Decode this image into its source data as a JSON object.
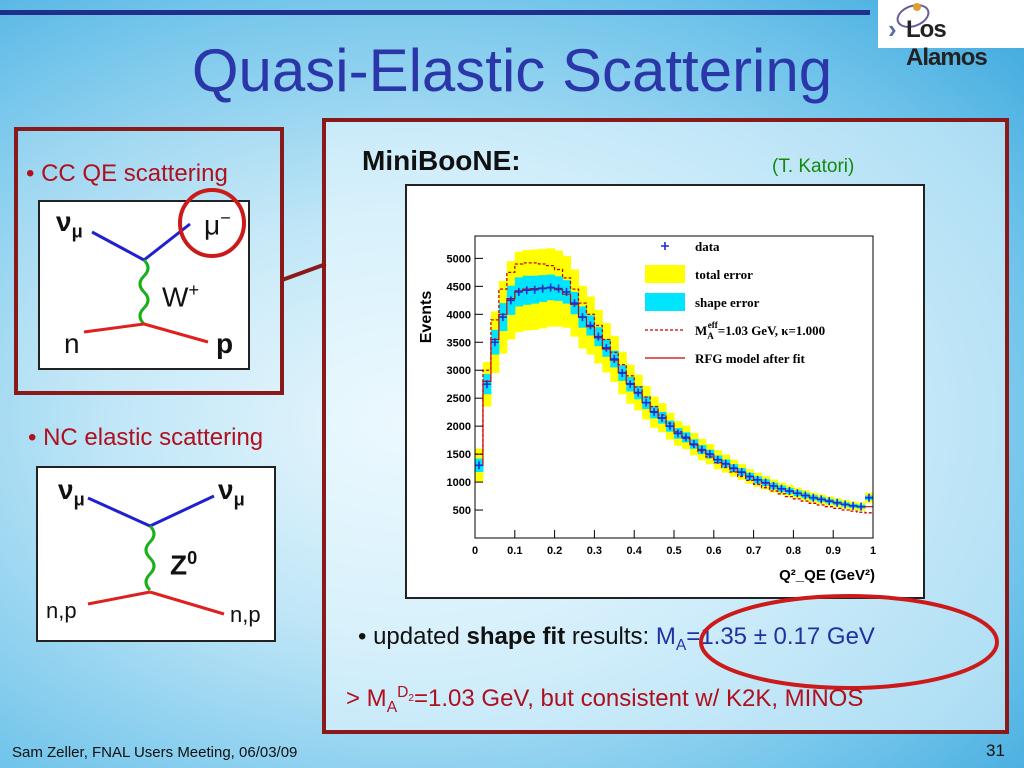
{
  "slide": {
    "title": "Quasi-Elastic Scattering",
    "logo_text": "Los Alamos",
    "footer": "Sam  Zeller, FNAL Users Meeting, 06/03/09",
    "page_number": "31"
  },
  "left_panel": {
    "cc_bullet": "• CC QE scattering",
    "cc_diagram": {
      "nu": "ν",
      "nu_sub": "μ",
      "mu": "μ",
      "mu_sup": "−",
      "boson": "W",
      "boson_sup": "+",
      "n": "n",
      "p": "p"
    },
    "nc_bullet": "• NC elastic scattering",
    "nc_diagram": {
      "nu_in": "ν",
      "nu_in_sub": "μ",
      "nu_out": "ν",
      "nu_out_sub": "μ",
      "boson": "Z",
      "boson_sup": "0",
      "left_label": "n,p",
      "right_label": "n,p"
    }
  },
  "right_panel": {
    "heading": "MiniBooNE:",
    "credit": "(T. Katori)",
    "result_prefix": "• updated ",
    "result_bold": "shape fit",
    "result_mid": " results: ",
    "result_value_a": "M",
    "result_value_sub": "A",
    "result_value_b": "=1.35 ± 0.17 GeV",
    "note_a": "> M",
    "note_sub": "A",
    "note_sup": "D",
    "note_sup2": "2",
    "note_b": "=1.03 GeV, but consistent w/ K2K, MINOS"
  },
  "colors": {
    "accent_red": "#b0101e",
    "frame_red": "#8a1a1a",
    "title_blue": "#2b37a8",
    "total_error": "#ffff00",
    "shape_error": "#00e5ff",
    "data_marker": "#1a2fd0",
    "model_line": "#cc0000"
  },
  "chart_data": {
    "type": "line",
    "title": "",
    "xlabel": "Q²_QE (GeV²)",
    "ylabel": "Events",
    "xlim": [
      0,
      1
    ],
    "ylim": [
      0,
      5400
    ],
    "xticks": [
      "0",
      "0.1",
      "0.2",
      "0.3",
      "0.4",
      "0.5",
      "0.6",
      "0.7",
      "0.8",
      "0.9",
      "1"
    ],
    "yticks": [
      "500",
      "1000",
      "1500",
      "2000",
      "2500",
      "3000",
      "3500",
      "4000",
      "4500",
      "5000"
    ],
    "legend": {
      "placement": "top-right",
      "entries": [
        {
          "label": "data",
          "style": "marker"
        },
        {
          "label": "total error",
          "style": "yellow-band"
        },
        {
          "label": "shape error",
          "style": "cyan-band"
        },
        {
          "label": "M_A^eff=1.03 GeV, κ=1.000",
          "label_a": "M",
          "label_sub": "A",
          "label_sup": "eff",
          "label_b": "=1.03 GeV, κ=1.000",
          "style": "dashed-red"
        },
        {
          "label": "RFG model after fit",
          "style": "solid-red"
        }
      ]
    },
    "x": [
      0.01,
      0.03,
      0.05,
      0.07,
      0.09,
      0.11,
      0.13,
      0.15,
      0.17,
      0.19,
      0.21,
      0.23,
      0.25,
      0.27,
      0.29,
      0.31,
      0.33,
      0.35,
      0.37,
      0.39,
      0.41,
      0.43,
      0.45,
      0.47,
      0.49,
      0.51,
      0.53,
      0.55,
      0.57,
      0.59,
      0.61,
      0.63,
      0.65,
      0.67,
      0.69,
      0.71,
      0.73,
      0.75,
      0.77,
      0.79,
      0.81,
      0.83,
      0.85,
      0.87,
      0.89,
      0.91,
      0.93,
      0.95,
      0.97,
      0.99
    ],
    "series": [
      {
        "name": "data",
        "values": [
          1300,
          2750,
          3500,
          3950,
          4250,
          4400,
          4430,
          4440,
          4460,
          4480,
          4460,
          4400,
          4200,
          3950,
          3800,
          3600,
          3400,
          3200,
          2950,
          2750,
          2600,
          2420,
          2250,
          2150,
          2000,
          1870,
          1800,
          1680,
          1580,
          1500,
          1400,
          1330,
          1250,
          1180,
          1100,
          1040,
          990,
          930,
          880,
          840,
          800,
          760,
          720,
          690,
          660,
          630,
          600,
          575,
          560,
          720
        ]
      },
      {
        "name": "total error",
        "values": [
          300,
          400,
          550,
          650,
          700,
          720,
          720,
          720,
          710,
          700,
          680,
          640,
          600,
          560,
          520,
          480,
          440,
          410,
          380,
          350,
          320,
          300,
          280,
          260,
          240,
          220,
          210,
          200,
          190,
          180,
          170,
          160,
          150,
          140,
          130,
          125,
          120,
          115,
          110,
          105,
          100,
          95,
          90,
          88,
          85,
          82,
          80,
          78,
          75,
          90
        ]
      },
      {
        "name": "shape error",
        "values": [
          120,
          180,
          220,
          250,
          260,
          260,
          260,
          250,
          240,
          230,
          220,
          210,
          200,
          190,
          180,
          170,
          160,
          150,
          140,
          130,
          120,
          115,
          110,
          105,
          100,
          95,
          90,
          85,
          80,
          78,
          75,
          72,
          70,
          68,
          65,
          62,
          60,
          58,
          55,
          52,
          50,
          48,
          46,
          44,
          42,
          40,
          38,
          36,
          35,
          40
        ]
      },
      {
        "name": "M_A^eff=1.03 GeV, κ=1.000",
        "values": [
          1500,
          3000,
          3900,
          4450,
          4750,
          4900,
          4920,
          4920,
          4900,
          4870,
          4800,
          4650,
          4450,
          4200,
          4000,
          3800,
          3550,
          3320,
          3100,
          2900,
          2700,
          2520,
          2350,
          2200,
          2050,
          1900,
          1780,
          1660,
          1550,
          1450,
          1350,
          1260,
          1180,
          1100,
          1030,
          960,
          900,
          840,
          790,
          740,
          700,
          660,
          620,
          590,
          560,
          530,
          500,
          480,
          460,
          450
        ]
      },
      {
        "name": "RFG model after fit",
        "values": [
          1300,
          2800,
          3550,
          4000,
          4280,
          4420,
          4450,
          4460,
          4470,
          4470,
          4440,
          4360,
          4180,
          3950,
          3780,
          3580,
          3380,
          3180,
          2960,
          2760,
          2590,
          2420,
          2260,
          2140,
          2000,
          1870,
          1790,
          1670,
          1570,
          1490,
          1400,
          1320,
          1240,
          1170,
          1100,
          1040,
          980,
          930,
          880,
          840,
          800,
          760,
          720,
          690,
          660,
          630,
          600,
          575,
          555,
          560
        ]
      }
    ]
  }
}
